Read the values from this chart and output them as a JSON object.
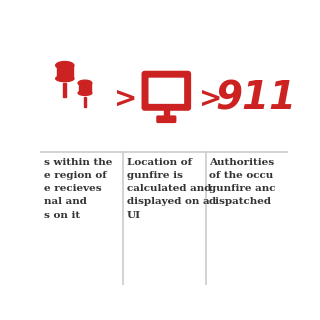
{
  "bg_color": "#ffffff",
  "red_color": "#cc2222",
  "dark_color": "#333333",
  "separator_color": "#cccccc",
  "col1_text": "s within the\ne region of\ne recieves\nnal and\ns on it",
  "col2_text": "Location of\ngunfire is\ncalculated and\ndisplayed on a\nUI",
  "col3_text": "Authorities\nof the occu\ngunfire anc\ndispatched",
  "arrow_char": ">",
  "text_911": "911"
}
